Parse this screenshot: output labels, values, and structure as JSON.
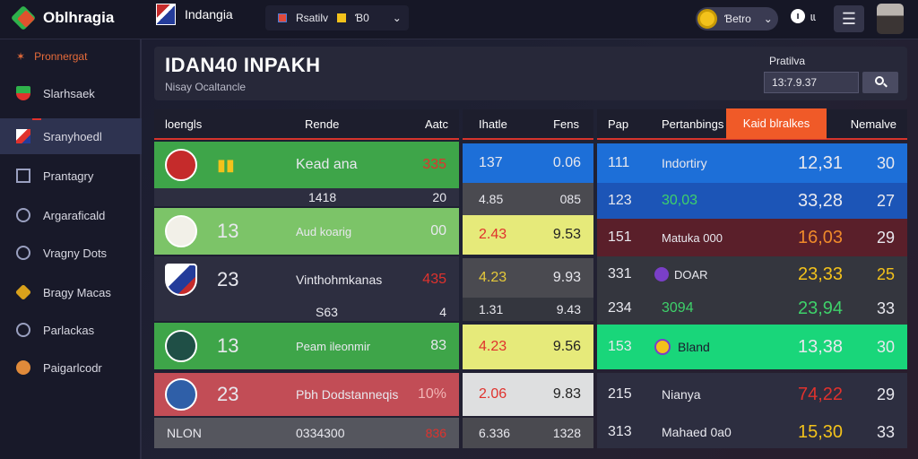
{
  "app": {
    "logo_text": "Oblhragia",
    "tab_name": "Indangia",
    "quick_tab": {
      "label": "Rsatilv",
      "value": "Ɓ0",
      "chevron": "⌄"
    },
    "user": {
      "label": "Ɓetro",
      "chevron": "⌄"
    },
    "notifications": {
      "count": "ı",
      "label": "ɩɩ"
    }
  },
  "sidebar": {
    "top_label": "Pronnergat",
    "items": [
      {
        "label": "Slarhsaek",
        "icon": "shield-icon"
      },
      {
        "label": "Sranyhoedl",
        "icon": "flag-icon",
        "active": true
      },
      {
        "label": "Prantagry",
        "icon": "box-icon"
      },
      {
        "label": "Argaraficald",
        "icon": "compass-icon"
      },
      {
        "label": "Vragny Dots",
        "icon": "circle-icon"
      },
      {
        "label": "Bragy Macas",
        "icon": "gem-icon"
      },
      {
        "label": "Parlackas",
        "icon": "globe-icon"
      },
      {
        "label": "Paigarlcodr",
        "icon": "ball-icon"
      }
    ]
  },
  "header": {
    "title": "IDAN40 INPAKH",
    "subtitle": "Nisay Ocaltancle",
    "search_label": "Pratilva",
    "search_value": "13:7.9.37"
  },
  "table_a": {
    "headers": [
      "loengls",
      "Rende",
      "Aatc"
    ],
    "rows": [
      {
        "score": "",
        "name": "Kead ana",
        "value": "335"
      },
      {
        "score": "",
        "name": "1418",
        "value": "20"
      },
      {
        "score": "13",
        "name": "Aud koarig",
        "value": "00"
      },
      {
        "score": "23",
        "name": "Vinthohmkanas",
        "value": "435"
      },
      {
        "score": "",
        "name": "S63",
        "value": "4"
      },
      {
        "score": "13",
        "name": "Peam ileonmir",
        "value": "83"
      },
      {
        "score": "23",
        "name": "Pbh Dodstanneqis",
        "value": "10%"
      },
      {
        "score": "NLON",
        "name": "0334300",
        "value": "836"
      }
    ]
  },
  "table_b": {
    "headers": [
      "Ihatle",
      "Fens"
    ],
    "rows": [
      {
        "a": "137",
        "b": "0.06"
      },
      {
        "a": "4.85",
        "b": "085"
      },
      {
        "a": "2.43",
        "b": "9.53"
      },
      {
        "a": "4.23",
        "b": "9.93"
      },
      {
        "a": "1.31",
        "b": "9.43"
      },
      {
        "a": "4.23",
        "b": "9.56"
      },
      {
        "a": "2.06",
        "b": "9.83"
      },
      {
        "a": "6.336",
        "b": "1328"
      }
    ]
  },
  "table_c": {
    "headers": [
      "Pap",
      "Pertanbings",
      "Kaid blralkes",
      "Nemalve"
    ],
    "rows": [
      {
        "n": "111",
        "name": "Indortiry",
        "v": "12,31",
        "w": "30"
      },
      {
        "n": "123",
        "name": "30,03",
        "v": "33,28",
        "w": "27"
      },
      {
        "n": "151",
        "name": "Matuka 000",
        "v": "16,03",
        "w": "29"
      },
      {
        "n": "331",
        "name": "DOAR",
        "v": "23,33",
        "w": "25"
      },
      {
        "n": "234",
        "name": "3094",
        "v": "23,94",
        "w": "33"
      },
      {
        "n": "153",
        "name": "Bland",
        "v": "13,38",
        "w": "30"
      },
      {
        "n": "215",
        "name": "Nianya",
        "v": "74,22",
        "w": "29"
      },
      {
        "n": "313",
        "name": "Mahaed 0a0",
        "v": "15,30",
        "w": "33"
      }
    ]
  },
  "colors": {
    "accent_red": "#e0322d",
    "accent_orange": "#f05a28",
    "blue": "#1d6fd8",
    "green": "#3ea549"
  }
}
